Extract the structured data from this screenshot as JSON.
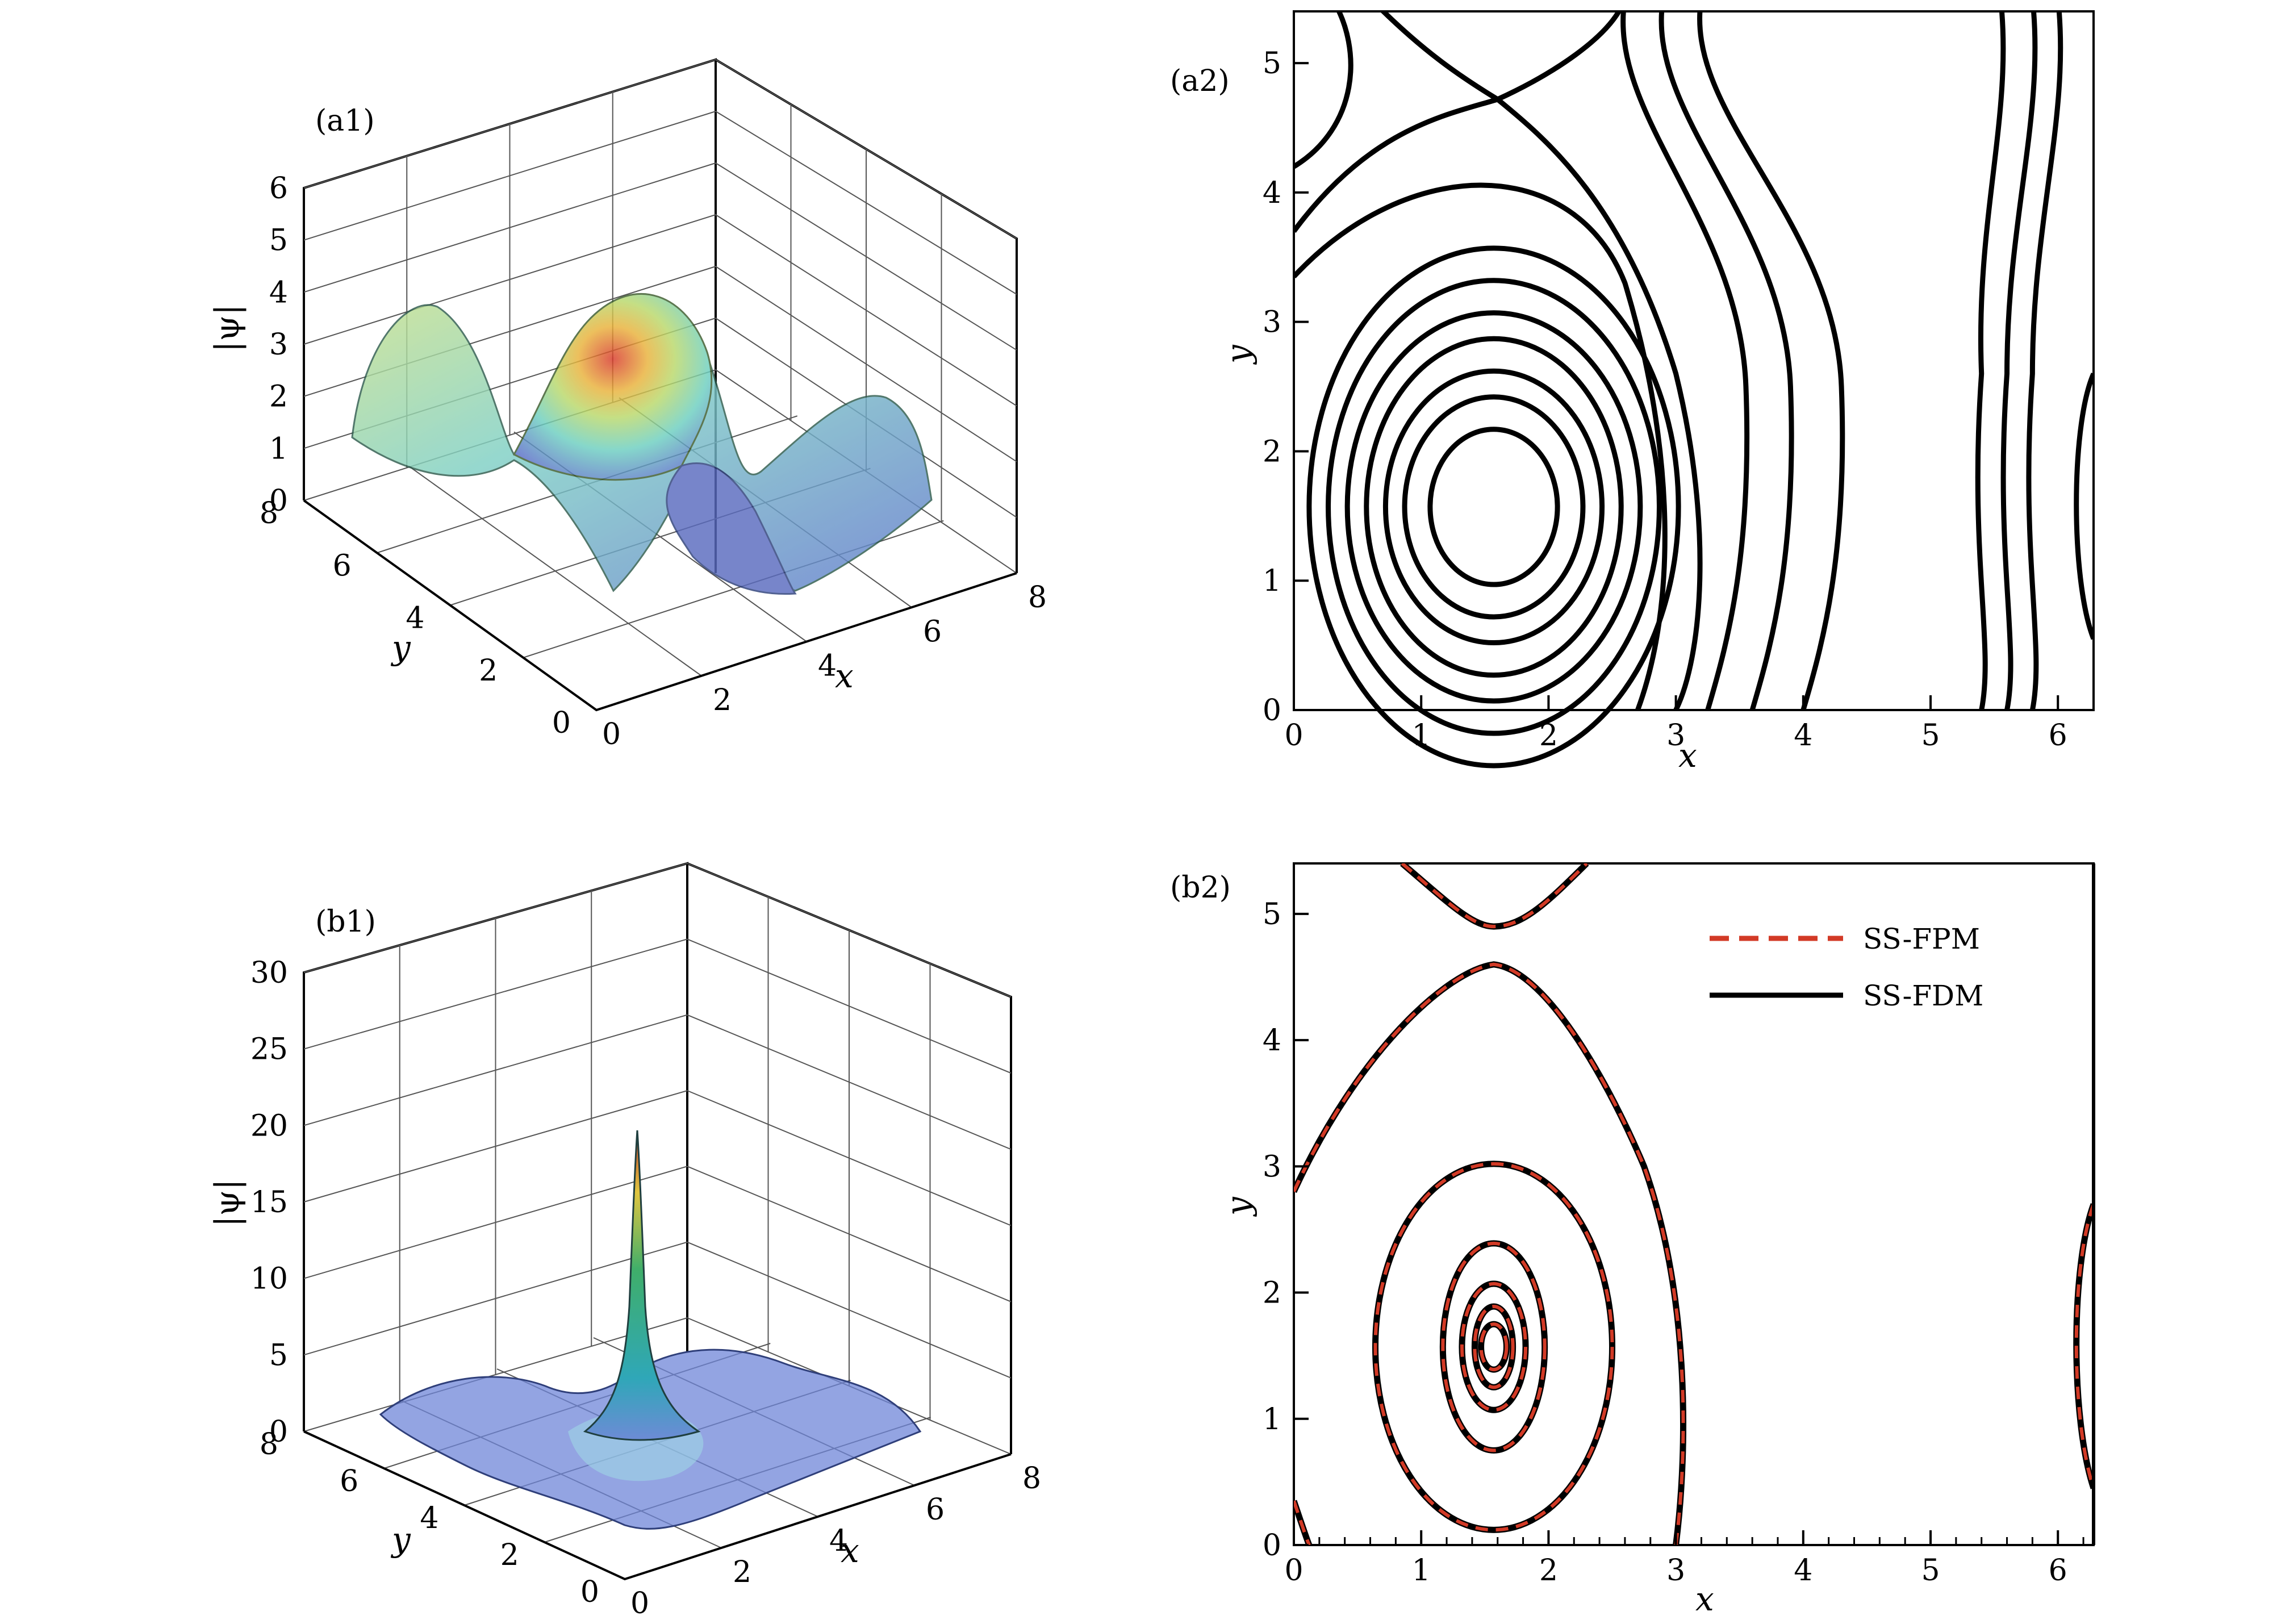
{
  "chart_data": [
    {
      "id": "a1",
      "type": "surface3d",
      "panel_label": "(a1)",
      "xlabel": "x",
      "ylabel": "y",
      "zlabel": "|ψ|",
      "xlim": [
        0,
        8
      ],
      "ylim": [
        0,
        8
      ],
      "zlim": [
        0,
        6
      ],
      "x_ticks": [
        "0",
        "2",
        "4",
        "6",
        "8"
      ],
      "y_ticks": [
        "0",
        "2",
        "4",
        "6",
        "8"
      ],
      "z_ticks": [
        "0",
        "1",
        "2",
        "3",
        "4",
        "5",
        "6"
      ],
      "grid": true,
      "peak_value": 3.7
    },
    {
      "id": "a2",
      "type": "contour",
      "panel_label": "(a2)",
      "xlabel": "x",
      "ylabel": "y",
      "xlim": [
        0,
        6.28
      ],
      "ylim": [
        0,
        5.4
      ],
      "x_ticks": [
        "0",
        "1",
        "2",
        "3",
        "4",
        "5",
        "6"
      ],
      "y_ticks": [
        "0",
        "1",
        "2",
        "3",
        "4",
        "5"
      ],
      "center": [
        1.57,
        1.57
      ],
      "line_color": "#000000"
    },
    {
      "id": "b1",
      "type": "surface3d",
      "panel_label": "(b1)",
      "xlabel": "x",
      "ylabel": "y",
      "zlabel": "|ψ|",
      "xlim": [
        0,
        8
      ],
      "ylim": [
        0,
        8
      ],
      "zlim": [
        0,
        30
      ],
      "x_ticks": [
        "0",
        "2",
        "4",
        "6",
        "8"
      ],
      "y_ticks": [
        "0",
        "2",
        "4",
        "6",
        "8"
      ],
      "z_ticks": [
        "0",
        "5",
        "10",
        "15",
        "20",
        "25",
        "30"
      ],
      "grid": true,
      "peak_value": 20
    },
    {
      "id": "b2",
      "type": "contour",
      "panel_label": "(b2)",
      "xlabel": "x",
      "ylabel": "y",
      "xlim": [
        0,
        6.28
      ],
      "ylim": [
        0,
        5.4
      ],
      "x_ticks": [
        "0",
        "1",
        "2",
        "3",
        "4",
        "5",
        "6"
      ],
      "y_ticks": [
        "0",
        "1",
        "2",
        "3",
        "4",
        "5"
      ],
      "center": [
        1.57,
        1.57
      ],
      "legend_position": "top-right",
      "series": [
        {
          "name": "SS-FPM",
          "style": "dashed",
          "color": "#d23a26"
        },
        {
          "name": "SS-FDM",
          "style": "solid",
          "color": "#000000"
        }
      ]
    }
  ]
}
